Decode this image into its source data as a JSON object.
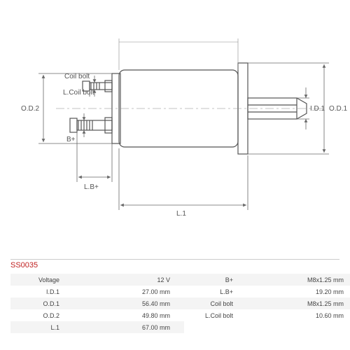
{
  "part_number": "SS0035",
  "diagram": {
    "labels": {
      "od2": "O.D.2",
      "od1": "O.D.1",
      "id1": "I.D.1",
      "coil_bolt": "Coil bolt",
      "l_coil_bolt": "L.Coil bolt",
      "b_plus": "B+",
      "lb_plus": "L.B+",
      "l1": "L.1"
    },
    "stroke": "#666666",
    "thin_stroke": "#888888"
  },
  "specs": {
    "left": [
      {
        "label": "Voltage",
        "value": "12 V"
      },
      {
        "label": "I.D.1",
        "value": "27.00 mm"
      },
      {
        "label": "O.D.1",
        "value": "56.40 mm"
      },
      {
        "label": "O.D.2",
        "value": "49.80 mm"
      },
      {
        "label": "L.1",
        "value": "67.00 mm"
      }
    ],
    "right": [
      {
        "label": "B+",
        "value": "M8x1.25 mm"
      },
      {
        "label": "L.B+",
        "value": "19.20 mm"
      },
      {
        "label": "Coil bolt",
        "value": "M8x1.25 mm"
      },
      {
        "label": "L.Coil bolt",
        "value": "10.60 mm"
      }
    ]
  }
}
